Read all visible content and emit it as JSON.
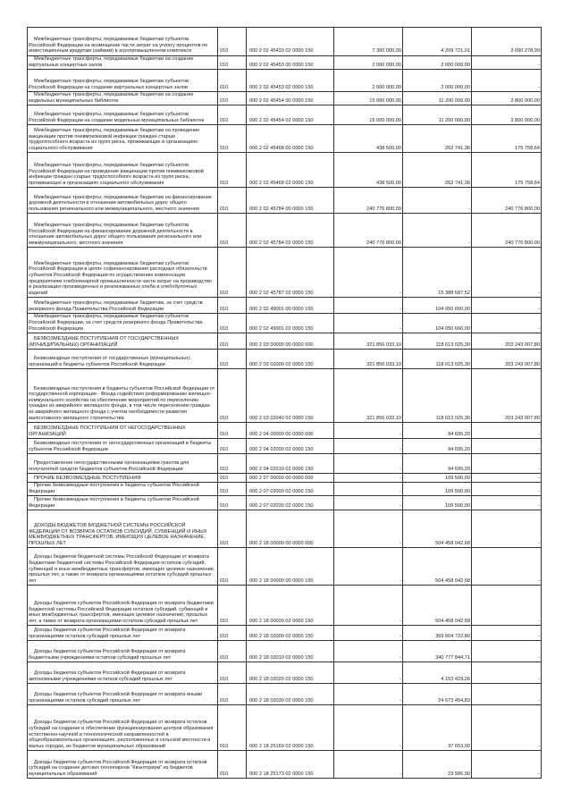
{
  "rows": [
    {
      "name": "Межбюджетные трансферты, передаваемые бюджетам субъектов Российской Федерации на возмещение части затрат на уплату процентов по инвестиционным кредитам (займам) в агропромышленном комплексе",
      "code": "010",
      "kbk": "000 2 02 45433 02 0000 150",
      "plan": "7 300 000,00",
      "fact": "4 209 721,01",
      "rest": "3 090 278,99"
    },
    {
      "name": "Межбюджетные трансферты, передаваемые бюджетам на создание виртуальных концертных залов",
      "code": "010",
      "kbk": "000 2 02 45453 00 0000 150",
      "plan": "2 000 000,00",
      "fact": "2 000 000,00",
      "rest": "-"
    },
    {
      "name": "Межбюджетные трансферты, передаваемые бюджетам субъектов Российской Федерации на создание виртуальных концертных залов",
      "code": "010",
      "kbk": "000 2 02 45453 02 0000 150",
      "plan": "2 000 000,00",
      "fact": "2 000 000,00",
      "rest": "-"
    },
    {
      "name": "Межбюджетные трансферты, передаваемые бюджетам на создание модельных муниципальных библиотек",
      "code": "010",
      "kbk": "000 2 02 45454 00 0000 150",
      "plan": "15 000 000,00",
      "fact": "11 200 000,00",
      "rest": "3 800 000,00"
    },
    {
      "name": "Межбюджетные трансферты, передаваемые бюджетам субъектов Российской Федерации на создание модельных муниципальных библиотек",
      "code": "010",
      "kbk": "000 2 02 45454 02 0000 150",
      "plan": "15 000 000,00",
      "fact": "11 200 000,00",
      "rest": "3 800 000,00"
    },
    {
      "name": "Межбюджетные трансферты, передаваемые бюджетам на проведение вакцинации против пневмококковой инфекции граждан старше трудоспособного возраста из групп риска, проживающих в организациях социального обслуживания",
      "code": "010",
      "kbk": "000 2 02 45468 00 0000 150",
      "plan": "438 500,00",
      "fact": "262 741,36",
      "rest": "175 758,64"
    },
    {
      "name": "Межбюджетные трансферты, передаваемые бюджетам субъектов Российской Федерации на проведение вакцинации против пневмококковой инфекции граждан старше трудоспособного возраста из групп риска, проживающих в организациях социального обслуживания",
      "code": "010",
      "kbk": "000 2 02 45468 02 0000 150",
      "plan": "438 500,00",
      "fact": "262 741,36",
      "rest": "175 758,64"
    },
    {
      "name": "Межбюджетные трансферты, передаваемые бюджетам на финансирование дорожной деятельности в отношении автомобильных дорог общего пользования регионального или межмуниципального, местного значения",
      "code": "010",
      "kbk": "000 2 02 45784 00 0000 150",
      "plan": "240 776 800,00",
      "fact": "-",
      "rest": "240 776 800,00"
    },
    {
      "name": "Межбюджетные трансферты, передаваемые бюджетам субъектов Российской Федерации на финансирование дорожной деятельности в отношении автомобильных дорог общего пользования регионального или межмуниципального, местного значения",
      "code": "010",
      "kbk": "000 2 02 45784 02 0000 150",
      "plan": "240 776 800,00",
      "fact": "-",
      "rest": "240 776 800,00"
    },
    {
      "name": "Межбюджетные трансферты, передаваемые бюджетам субъектов Российской Федерации в целях софинансирования расходных обязательств субъектов Российской Федерации по осуществлению компенсации предприятиям хлебопекарной промышленности части затрат на производство и реализацию произведенных и реализованных хлеба и хлебобулочных изделий",
      "code": "010",
      "kbk": "000 2 02 45787 02 0000 150",
      "plan": "-",
      "fact": "15 388 687,52",
      "rest": "-"
    },
    {
      "name": "Межбюджетные трансферты, передаваемые бюджетам, за счет средств резервного фонда Правительства Российской Федерации",
      "code": "010",
      "kbk": "000 2 02 49001 00 0000 150",
      "plan": "-",
      "fact": "104 050 660,00",
      "rest": "-"
    },
    {
      "name": "Межбюджетные трансферты, передаваемые бюджетам субъектов Российской Федерации, за счет средств резервного фонда Правительства Российской Федерации",
      "code": "010",
      "kbk": "000 2 02 49001 02 0000 150",
      "plan": "-",
      "fact": "104 050 660,00",
      "rest": "-"
    },
    {
      "name": "БЕЗВОЗМЕЗДНЫЕ ПОСТУПЛЕНИЯ ОТ ГОСУДАРСТВЕННЫХ (МУНИЦИПАЛЬНЫХ) ОРГАНИЗАЦИЙ",
      "code": "010",
      "kbk": "000 2 03 00000 00 0000 000",
      "plan": "321 856 033,10",
      "fact": "118 613 025,30",
      "rest": "203 243 007,80"
    },
    {
      "name": "Безвозмездные поступления от государственных (муниципальных) организаций в бюджеты субъектов Российской Федерации",
      "code": "010",
      "kbk": "000 2 03 02000 02 0000 150",
      "plan": "321 856 033,10",
      "fact": "118 613 025,30",
      "rest": "203 243 007,80"
    },
    {
      "name": "Безвозмездные поступления в бюджеты субъектов Российской Федерации от государственной корпорации - Фонда содействия реформированию жилищно-коммунального хозяйства на обеспечение мероприятий по переселению граждан из аварийного жилищного фонда, в том числе переселению граждан из аварийного жилищного фонда с учетом необходимости развития малоэтажного жилищного строительства",
      "code": "010",
      "kbk": "000 2 03 02040 02 0000 150",
      "plan": "321 856 033,10",
      "fact": "118 613 025,30",
      "rest": "203 243 007,80"
    },
    {
      "name": "БЕЗВОЗМЕЗДНЫЕ ПОСТУПЛЕНИЯ ОТ НЕГОСУДАРСТВЕННЫХ ОРГАНИЗАЦИЙ",
      "code": "010",
      "kbk": "000 2 04 00000 00 0000 000",
      "plan": "-",
      "fact": "94 695,20",
      "rest": "-"
    },
    {
      "name": "Безвозмездные поступления от негосударственных организаций в бюджеты субъектов Российской Федерации",
      "code": "010",
      "kbk": "000 2 04 02000 02 0000 150",
      "plan": "-",
      "fact": "94 695,20",
      "rest": "-"
    },
    {
      "name": "Предоставление негосударственными организациями грантов для получателей средств бюджетов субъектов Российской Федерации",
      "code": "010",
      "kbk": "000 2 04 02010 02 0000 150",
      "plan": "-",
      "fact": "94 695,20",
      "rest": "-"
    },
    {
      "name": "ПРОЧИЕ БЕЗВОЗМЕЗДНЫЕ ПОСТУПЛЕНИЯ",
      "code": "010",
      "kbk": "000 2 07 00000 00 0000 000",
      "plan": "-",
      "fact": "109 500,00",
      "rest": "-"
    },
    {
      "name": "Прочие безвозмездные поступления в бюджеты субъектов Российской Федерации",
      "code": "010",
      "kbk": "000 2 07 02000 02 0000 150",
      "plan": "-",
      "fact": "109 500,00",
      "rest": "-"
    },
    {
      "name": "Прочие безвозмездные поступления в бюджеты субъектов Российской Федерации",
      "code": "010",
      "kbk": "000 2 07 02030 02 0000 150",
      "plan": "-",
      "fact": "109 500,00",
      "rest": "-"
    },
    {
      "name": "ДОХОДЫ БЮДЖЕТОВ БЮДЖЕТНОЙ СИСТЕМЫ РОССИЙСКОЙ ФЕДЕРАЦИИ ОТ ВОЗВРАТА ОСТАТКОВ СУБСИДИЙ, СУБВЕНЦИЙ И ИНЫХ МЕЖБЮДЖЕТНЫХ ТРАНСФЕРТОВ, ИМЕЮЩИХ ЦЕЛЕВОЕ НАЗНАЧЕНИЕ, ПРОШЛЫХ ЛЕТ",
      "code": "010",
      "kbk": "000 2 18 00000 00 0000 000",
      "plan": "-",
      "fact": "504 458 042,68",
      "rest": "-"
    },
    {
      "name": "Доходы бюджетов бюджетной системы Российской Федерации от возврата бюджетами бюджетной системы Российской Федерации остатков субсидий, субвенций и иных межбюджетных трансфертов, имеющих целевое назначение, прошлых лет, а также от возврата организациями остатков субсидий прошлых лет",
      "code": "010",
      "kbk": "000 2 18 00000 00 0000 150",
      "plan": "-",
      "fact": "504 458 042,68",
      "rest": "-"
    },
    {
      "name": "Доходы бюджетов субъектов Российской Федерации от возврата бюджетами бюджетной системы Российской Федерации остатков субсидий, субвенций и иных межбюджетных трансфертов, имеющих целевое назначение, прошлых лет, а также от возврата организациями остатков субсидий прошлых лет",
      "code": "010",
      "kbk": "000 2 18 00000 02 0000 150",
      "plan": "-",
      "fact": "504 458 042,68",
      "rest": "-"
    },
    {
      "name": "Доходы бюджетов субъектов Российской Федерации от возврата организациями остатков субсидий прошлых лет",
      "code": "010",
      "kbk": "000 2 18 02000 02 0000 150",
      "plan": "-",
      "fact": "369 604 722,80",
      "rest": "-"
    },
    {
      "name": "Доходы бюджетов субъектов Российской Федерации от возврата бюджетными учреждениями остатков субсидий прошлых лет",
      "code": "010",
      "kbk": "000 2 18 02010 02 0000 150",
      "plan": "-",
      "fact": "340 777 844,71",
      "rest": "-"
    },
    {
      "name": "Доходы бюджетов субъектов Российской Федерации от возврата автономными учреждениями остатков субсидий прошлых лет",
      "code": "010",
      "kbk": "000 2 18 02020 02 0000 150",
      "plan": "-",
      "fact": "4 153 423,26",
      "rest": "-"
    },
    {
      "name": "Доходы бюджетов субъектов Российской Федерации от возврата иными организациями остатков субсидий прошлых лет",
      "code": "010",
      "kbk": "000 2 18 02030 02 0000 150",
      "plan": "-",
      "fact": "24 673 454,83",
      "rest": "-"
    },
    {
      "name": "Доходы бюджетов субъектов Российской Федерации от возврата остатков субсидий на создание и обеспечение функционирования центров образования естественно-научной и технологической направленностей в общеобразовательных организациях, расположенных в сельской местности и малых городах, из бюджетов муниципальных образований",
      "code": "010",
      "kbk": "000 2 18 25169 02 0000 150",
      "plan": "-",
      "fact": "37 653,00",
      "rest": "-"
    },
    {
      "name": "Доходы бюджетов субъектов Российской Федерации от возврата остатков субсидий на создание детских технопарков \"Кванториум\" из бюджетов муниципальных образований",
      "code": "010",
      "kbk": "000 2 18 25173 02 0000 150",
      "plan": "-",
      "fact": "23 586,90",
      "rest": "-"
    }
  ]
}
